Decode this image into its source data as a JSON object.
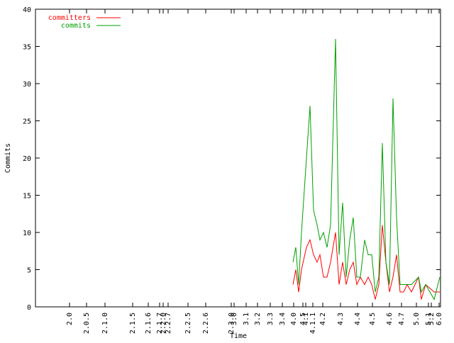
{
  "chart_data": {
    "type": "line",
    "xlabel": "Time",
    "ylabel": "Commits",
    "x": [
      413,
      417,
      421,
      425,
      432,
      437,
      442,
      447,
      451,
      456,
      461,
      466,
      473,
      478,
      483,
      488,
      493,
      498,
      503,
      508,
      514,
      519,
      524,
      529,
      534,
      539,
      544,
      549,
      554,
      559,
      564,
      569,
      574,
      580,
      590,
      594,
      600,
      612,
      620
    ],
    "series": [
      {
        "name": "committers",
        "color": "#ff0000",
        "values": [
          3,
          5,
          2,
          5,
          8,
          9,
          7,
          6,
          7,
          4,
          4,
          6,
          10,
          3,
          6,
          3,
          5,
          6,
          3,
          4,
          3,
          4,
          3,
          1,
          3,
          11,
          6,
          2,
          4,
          7,
          2,
          2,
          3,
          2,
          4,
          1,
          3,
          2,
          2
        ]
      },
      {
        "name": "commits",
        "color": "#00a000",
        "values": [
          6,
          8,
          3,
          10,
          20,
          27,
          13,
          11,
          9,
          10,
          8,
          11,
          36,
          7,
          14,
          4,
          9,
          12,
          4,
          4,
          9,
          7,
          7,
          2,
          4,
          22,
          6,
          3,
          28,
          12,
          3,
          3,
          3,
          3,
          4,
          2,
          3,
          1,
          4
        ]
      }
    ],
    "xlim": [
      50,
      621
    ],
    "ylim": [
      0,
      40
    ],
    "yticks": [
      0,
      5,
      10,
      15,
      20,
      25,
      30,
      35,
      40
    ],
    "xticks": [
      {
        "value": 98,
        "label": "2.0"
      },
      {
        "value": 122,
        "label": "2.0.5"
      },
      {
        "value": 148,
        "label": "2.1.0"
      },
      {
        "value": 187,
        "label": "2.1.5"
      },
      {
        "value": 209,
        "label": "2.1.6"
      },
      {
        "value": 225,
        "label": "2.1.7"
      },
      {
        "value": 230,
        "label": "2.2.0"
      },
      {
        "value": 237,
        "label": "2.2.7"
      },
      {
        "value": 265,
        "label": "2.2.5"
      },
      {
        "value": 290,
        "label": "2.2.6"
      },
      {
        "value": 326,
        "label": "2.3.0"
      },
      {
        "value": 330,
        "label": "3.0"
      },
      {
        "value": 347,
        "label": "3.1"
      },
      {
        "value": 363,
        "label": "3.2"
      },
      {
        "value": 381,
        "label": "3.3"
      },
      {
        "value": 398,
        "label": "3.4"
      },
      {
        "value": 414,
        "label": "4.0"
      },
      {
        "value": 427,
        "label": "4.5"
      },
      {
        "value": 431,
        "label": "4.1"
      },
      {
        "value": 441,
        "label": "4.1.1"
      },
      {
        "value": 455,
        "label": "4.2"
      },
      {
        "value": 480,
        "label": "4.3"
      },
      {
        "value": 504,
        "label": "4.4"
      },
      {
        "value": 525,
        "label": "4.5"
      },
      {
        "value": 549,
        "label": "4.6"
      },
      {
        "value": 566,
        "label": "4.7"
      },
      {
        "value": 587,
        "label": "5.0"
      },
      {
        "value": 604,
        "label": "5.1"
      },
      {
        "value": 608,
        "label": "5.2"
      },
      {
        "value": 619,
        "label": "6.0"
      }
    ],
    "legend": "top-left"
  }
}
